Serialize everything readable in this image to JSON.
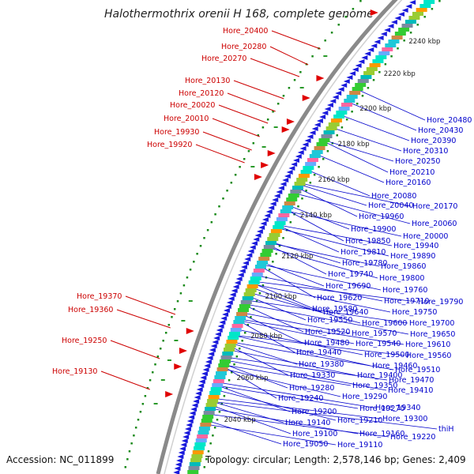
{
  "title": "Halothermothrix orenii H 168, complete genome",
  "accession": "Accession: NC_011899",
  "topology": "Topology: circular; Length: 2,578,146 bp; Genes: 2,409",
  "kbp_ticks": [
    "2240 kbp",
    "2220 kbp",
    "2200 kbp",
    "2180 kbp",
    "2160 kbp",
    "2140 kbp",
    "2120 kbp",
    "2100 kbp",
    "2080 kbp",
    "2060 kbp",
    "2040 kbp"
  ],
  "left_labels": [
    "Hore_20400",
    "Hore_20280",
    "Hore_20270",
    "Hore_20130",
    "Hore_20120",
    "Hore_20020",
    "Hore_20010",
    "Hore_19930",
    "Hore_19920",
    "Hore_19370",
    "Hore_19360",
    "Hore_19250",
    "Hore_19130"
  ],
  "right_labels": [
    "Hore_20480",
    "Hore_20430",
    "Hore_20390",
    "Hore_20310",
    "Hore_20250",
    "Hore_20210",
    "Hore_20160",
    "Hore_20080",
    "Hore_20170",
    "Hore_20040",
    "Hore_20060",
    "Hore_19960",
    "Hore_20000",
    "Hore_19900",
    "Hore_19940",
    "Hore_19850",
    "Hore_19890",
    "Hore_19810",
    "Hore_19860",
    "Hore_19780",
    "Hore_19800",
    "Hore_19740",
    "Hore_19760",
    "Hore_19690",
    "Hore_19790",
    "Hore_19620",
    "Hore_19750",
    "Hore_19710",
    "Hore_19700",
    "Hore_19580",
    "Hore_19650",
    "Hore_19640",
    "Hore_19610",
    "Hore_19550",
    "Hore_19560",
    "Hore_19600",
    "Hore_19510",
    "Hore_19520",
    "Hore_19470",
    "Hore_19570",
    "Hore_19410",
    "Hore_19480",
    "Hore_19340",
    "Hore_19540",
    "Hore_19300",
    "Hore_19440",
    "thiH",
    "Hore_19500",
    "Hore_19220",
    "Hore_19380",
    "Hore_19460",
    "Hore_19330",
    "Hore_19400",
    "Hore_19280",
    "Hore_19350",
    "Hore_19240",
    "Hore_19290",
    "Hore_19200",
    "Hore_19270",
    "Hore_19140",
    "Hore_19210",
    "Hore_19100",
    "Hore_19160",
    "Hore_19050",
    "Hore_19110"
  ],
  "colors": {
    "left_label": "#cc0000",
    "right_label": "#0000cc",
    "forward_arrow": "#e00000",
    "reverse_arrow": "#1a1adc",
    "backbone": "#8a8a8a",
    "gc_dots": "#1a8a1a"
  },
  "feature_palette": [
    "#00e6c8",
    "#20c8d8",
    "#7a8aa0",
    "#ff9900",
    "#ff66a0",
    "#33cc33",
    "#99cc33",
    "#66aaff",
    "#cc8844",
    "#00bbbb"
  ]
}
